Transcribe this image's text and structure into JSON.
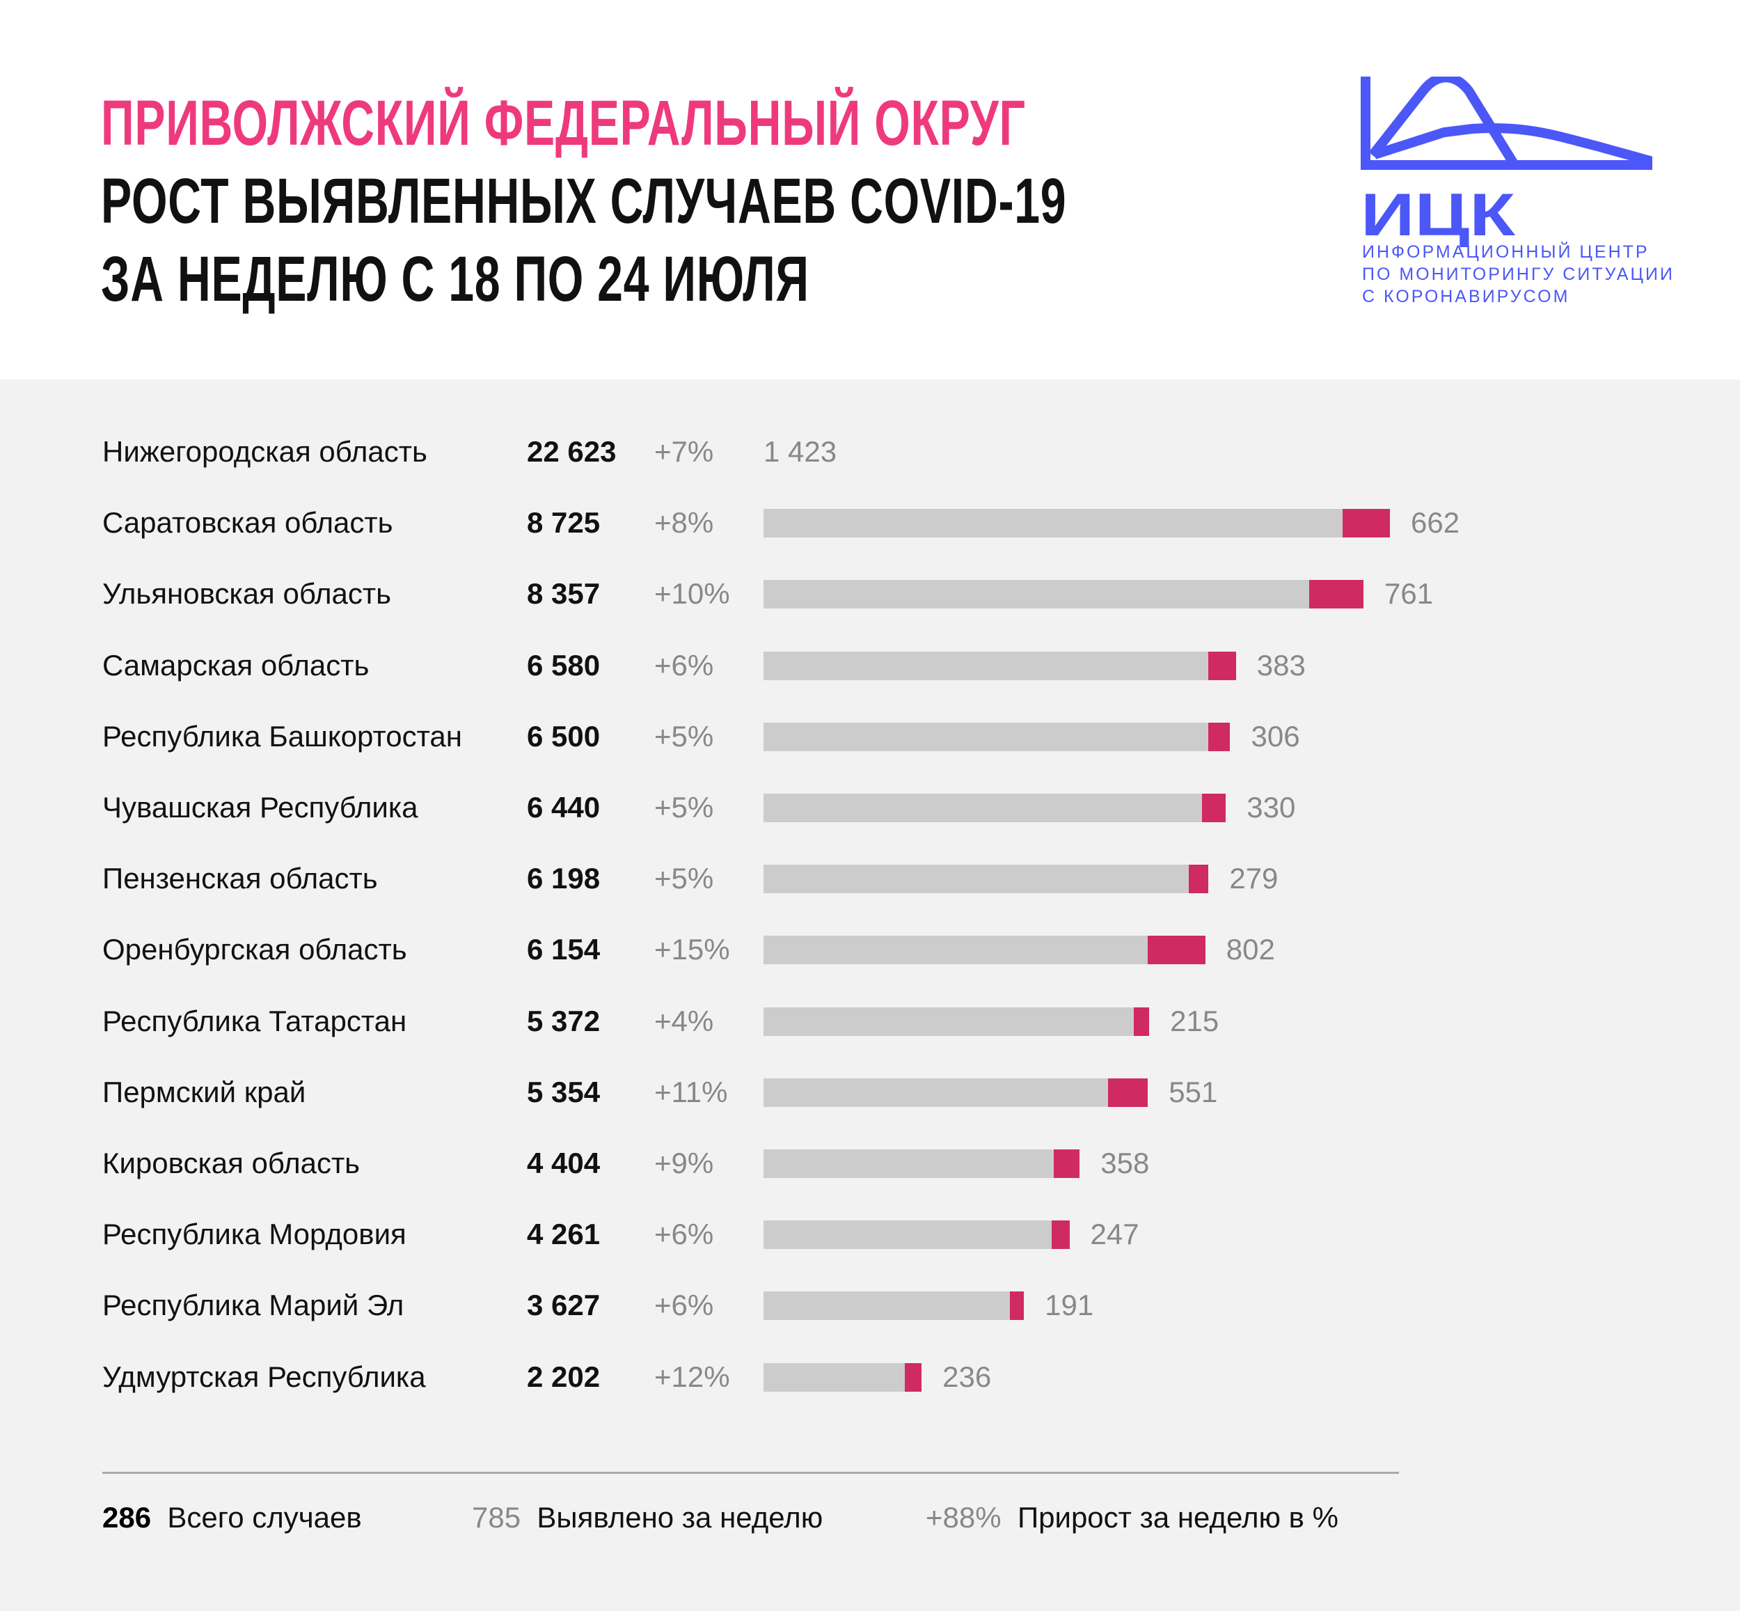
{
  "header": {
    "title_region": "ПРИВОЛЖСКИЙ ФЕДЕРАЛЬНЫЙ ОКРУГ",
    "title_line2": "РОСТ ВЫЯВЛЕННЫХ СЛУЧАЕВ COVID-19",
    "title_line3": "ЗА НЕДЕЛЮ С 18 ПО 24 ИЮЛЯ",
    "accent_color": "#ee3a7c"
  },
  "logo": {
    "abbr": "ИЦК",
    "line1": "ИНФОРМАЦИОННЫЙ ЦЕНТР",
    "line2": "ПО МОНИТОРИНГУ СИТУАЦИИ",
    "line3": "С КОРОНАВИРУСОМ",
    "color": "#4b57f7"
  },
  "chart_data": {
    "type": "bar",
    "orientation": "horizontal",
    "stacked": true,
    "colors": {
      "previous": "#cccccc",
      "weekly": "#d02a62"
    },
    "rows": [
      {
        "region": "Нижегородская область",
        "total": 22623,
        "total_label": "22 623",
        "growth": "+7%",
        "weekly": 1423,
        "weekly_label": "1 423",
        "bar_shown": false
      },
      {
        "region": "Саратовская область",
        "total": 8725,
        "total_label": "8 725",
        "growth": "+8%",
        "weekly": 662,
        "weekly_label": "662"
      },
      {
        "region": "Ульяновская область",
        "total": 8357,
        "total_label": "8 357",
        "growth": "+10%",
        "weekly": 761,
        "weekly_label": "761"
      },
      {
        "region": "Самарская область",
        "total": 6580,
        "total_label": "6 580",
        "growth": "+6%",
        "weekly": 383,
        "weekly_label": "383"
      },
      {
        "region": "Республика Башкортостан",
        "total": 6500,
        "total_label": "6 500",
        "growth": "+5%",
        "weekly": 306,
        "weekly_label": "306"
      },
      {
        "region": "Чувашская Республика",
        "total": 6440,
        "total_label": "6 440",
        "growth": "+5%",
        "weekly": 330,
        "weekly_label": "330"
      },
      {
        "region": "Пензенская область",
        "total": 6198,
        "total_label": "6 198",
        "growth": "+5%",
        "weekly": 279,
        "weekly_label": "279"
      },
      {
        "region": "Оренбургская область",
        "total": 6154,
        "total_label": "6 154",
        "growth": "+15%",
        "weekly": 802,
        "weekly_label": "802"
      },
      {
        "region": "Республика Татарстан",
        "total": 5372,
        "total_label": "5 372",
        "growth": "+4%",
        "weekly": 215,
        "weekly_label": "215"
      },
      {
        "region": "Пермский край",
        "total": 5354,
        "total_label": "5 354",
        "growth": "+11%",
        "weekly": 551,
        "weekly_label": "551"
      },
      {
        "region": "Кировская область",
        "total": 4404,
        "total_label": "4 404",
        "growth": "+9%",
        "weekly": 358,
        "weekly_label": "358"
      },
      {
        "region": "Республика Мордовия",
        "total": 4261,
        "total_label": "4 261",
        "growth": "+6%",
        "weekly": 247,
        "weekly_label": "247"
      },
      {
        "region": "Республика Марий Эл",
        "total": 3627,
        "total_label": "3 627",
        "growth": "+6%",
        "weekly": 191,
        "weekly_label": "191"
      },
      {
        "region": "Удмуртская Республика",
        "total": 2202,
        "total_label": "2 202",
        "growth": "+12%",
        "weekly": 236,
        "weekly_label": "236"
      }
    ]
  },
  "legend": {
    "total_sample": "286",
    "total_label": "Всего случаев",
    "weekly_sample": "785",
    "weekly_label": "Выявлено за неделю",
    "growth_sample": "+88%",
    "growth_label": "Прирост за неделю в %"
  }
}
